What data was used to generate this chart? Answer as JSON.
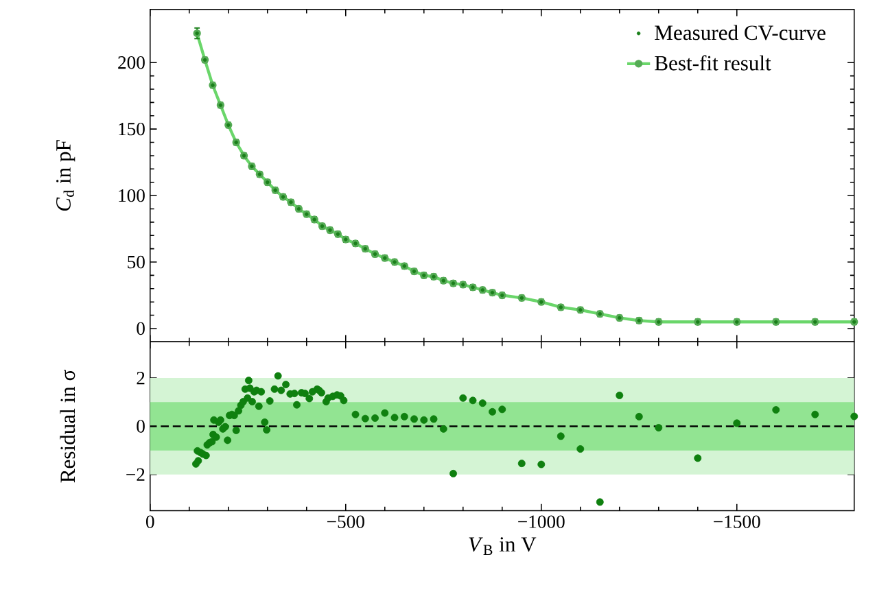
{
  "chart_data": [
    {
      "type": "line",
      "ylabel": "*C*$_{d}$ in pF",
      "xlim": [
        0,
        -1800
      ],
      "ylim": [
        -10,
        240
      ],
      "xticks": [
        0,
        -500,
        -1000,
        -1500
      ],
      "yticks": [
        0,
        50,
        100,
        150,
        200
      ],
      "tick_labels": "y",
      "legend": "top right",
      "x": [
        -120,
        -140,
        -160,
        -180,
        -200,
        -220,
        -240,
        -260,
        -280,
        -300,
        -320,
        -340,
        -360,
        -380,
        -400,
        -420,
        -440,
        -460,
        -480,
        -500,
        -525,
        -550,
        -575,
        -600,
        -625,
        -650,
        -675,
        -700,
        -725,
        -750,
        -775,
        -800,
        -825,
        -850,
        -875,
        -900,
        -950,
        -1000,
        -1050,
        -1100,
        -1150,
        -1200,
        -1250,
        -1300,
        -1400,
        -1500,
        -1600,
        -1700,
        -1800
      ],
      "series": [
        {
          "name": "Measured CV-curve",
          "type": "scatter",
          "marker": "circle",
          "color": "#1a7f1a",
          "values": [
            222,
            202,
            183,
            168,
            153,
            140,
            130,
            122,
            116,
            110,
            104,
            99,
            95,
            90,
            86,
            82,
            77,
            74,
            71,
            67,
            64,
            60,
            56,
            53,
            50,
            47,
            43,
            40,
            39,
            36,
            34,
            33,
            31,
            29,
            27,
            25,
            23,
            20,
            16,
            14,
            11,
            8,
            6,
            5,
            5,
            5,
            5,
            5,
            5
          ],
          "errors": [
            4,
            2,
            2,
            2,
            2,
            2,
            2,
            2,
            2,
            2,
            2,
            2,
            2,
            2,
            2,
            2,
            2,
            2,
            2,
            2,
            2,
            2,
            2,
            2,
            2,
            2,
            2,
            2,
            2,
            2,
            2,
            2,
            2,
            2,
            2,
            2,
            2,
            2,
            2,
            2,
            2,
            2,
            2,
            2,
            2,
            2,
            2,
            2,
            2
          ]
        },
        {
          "name": "Best-fit result",
          "type": "line",
          "marker": "circle",
          "line_style": "solid",
          "color": "#6ad66a",
          "values": [
            222,
            202,
            183,
            168,
            153,
            140,
            130,
            122,
            116,
            110,
            104,
            99,
            95,
            90,
            86,
            82,
            77,
            74,
            71,
            67,
            64,
            60,
            56,
            53,
            50,
            47,
            43,
            40,
            39,
            36,
            34,
            33,
            31,
            29,
            27,
            25,
            23,
            20,
            16,
            14,
            11,
            8,
            6,
            5,
            5,
            5,
            5,
            5,
            5
          ]
        }
      ]
    },
    {
      "type": "scatter",
      "xlabel": "*V*$_{B}$ in V",
      "ylabel": "Residual in σ",
      "xlim": [
        0,
        -1800
      ],
      "ylim": [
        -3.5,
        3.5
      ],
      "xticks": [
        {
          "value": 0,
          "label": "0"
        },
        {
          "value": -500,
          "label": "−500"
        },
        {
          "value": -1000,
          "label": "−1000"
        },
        {
          "value": -1500,
          "label": "−1500"
        }
      ],
      "yticks": [
        {
          "value": -2,
          "label": "−2"
        },
        0,
        2
      ],
      "color": "#0f800f",
      "x": [
        -117,
        -123,
        -121,
        -129,
        -135,
        -143,
        -146,
        -152,
        -158,
        -161,
        -163,
        -169,
        -175,
        -180,
        -186,
        -192,
        -198,
        -203,
        -209,
        -215,
        -220,
        -226,
        -232,
        -238,
        -243,
        -249,
        -252,
        -255,
        -261,
        -266,
        -272,
        -278,
        -284,
        -293,
        -298,
        -306,
        -318,
        -327,
        -335,
        -347,
        -358,
        -369,
        -375,
        -387,
        -396,
        -407,
        -415,
        -427,
        -432,
        -438,
        -450,
        -455,
        -467,
        -478,
        -487,
        -495,
        -525,
        -550,
        -575,
        -600,
        -625,
        -650,
        -675,
        -700,
        -725,
        -750,
        -775,
        -800,
        -825,
        -850,
        -875,
        -900,
        -950,
        -1000,
        -1050,
        -1100,
        -1150,
        -1200,
        -1250,
        -1300,
        -1400,
        -1500,
        -1600,
        -1700,
        -1800
      ],
      "values": [
        -1.56,
        -1.43,
        -1.02,
        -1.09,
        -1.15,
        -1.21,
        -0.77,
        -0.68,
        -0.64,
        -0.34,
        0.26,
        -0.45,
        0.17,
        0.26,
        -0.11,
        -0.02,
        -0.58,
        0.45,
        0.49,
        0.45,
        -0.17,
        0.64,
        0.87,
        1.02,
        1.54,
        1.17,
        1.9,
        1.58,
        1.02,
        1.43,
        1.49,
        0.83,
        1.43,
        0.17,
        -0.15,
        1.05,
        1.54,
        2.09,
        1.49,
        1.73,
        1.34,
        1.36,
        0.89,
        1.39,
        1.36,
        1.15,
        1.43,
        1.54,
        1.49,
        1.39,
        1.02,
        1.17,
        1.24,
        1.3,
        1.26,
        1.07,
        0.49,
        0.32,
        0.34,
        0.55,
        0.36,
        0.4,
        0.3,
        0.26,
        0.3,
        -0.11,
        -1.96,
        1.17,
        1.07,
        0.96,
        0.6,
        0.7,
        -1.54,
        -1.58,
        -0.41,
        -0.94,
        -3.14,
        1.28,
        0.4,
        -0.06,
        -1.32,
        0.13,
        0.68,
        0.49,
        0.41
      ],
      "bands": [
        {
          "axis": "y",
          "from": -2,
          "to": 2,
          "color": "#d4f4d4"
        },
        {
          "axis": "y",
          "from": -1,
          "to": 1,
          "color": "#92e492"
        }
      ],
      "ref_lines": [
        {
          "axis": "y",
          "value": 0,
          "color": "#000000",
          "line_style": "dashed"
        }
      ]
    }
  ]
}
